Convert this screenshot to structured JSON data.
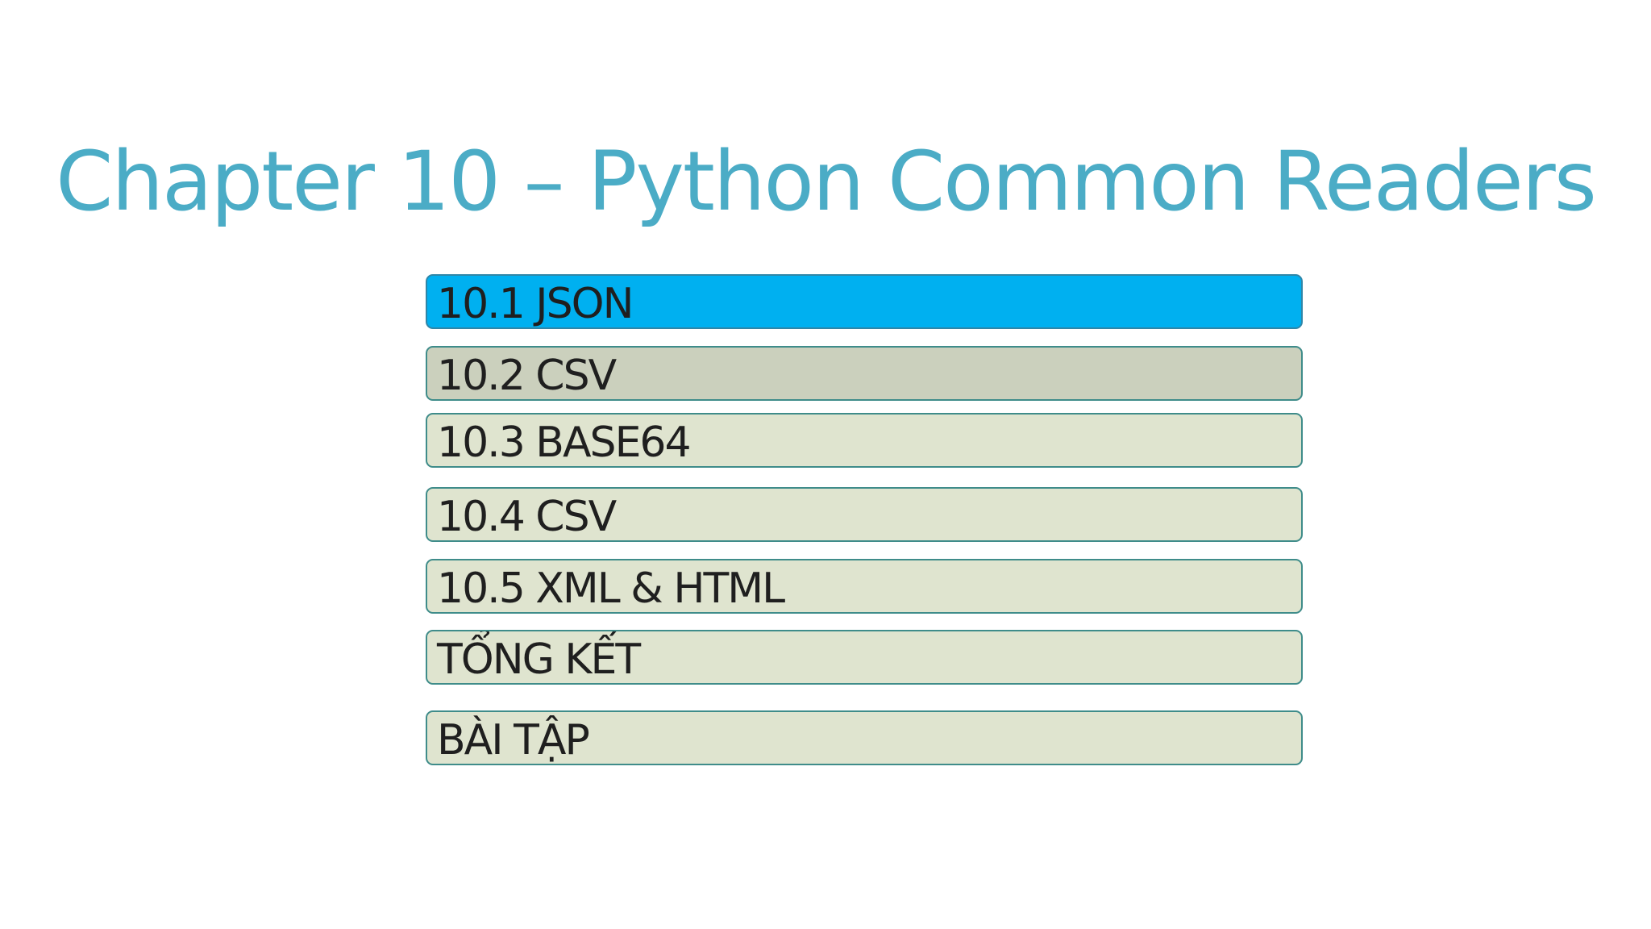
{
  "slide": {
    "title": "Chapter 10 – Python Common Readers"
  },
  "menu": {
    "items": [
      {
        "label": "10.1 JSON",
        "state": "selected"
      },
      {
        "label": "10.2 CSV",
        "state": "hover"
      },
      {
        "label": "10.3 BASE64",
        "state": "normal"
      },
      {
        "label": "10.4 CSV",
        "state": "normal"
      },
      {
        "label": "10.5 XML & HTML",
        "state": "normal"
      },
      {
        "label": "TỔNG KẾT",
        "state": "normal"
      },
      {
        "label": "BÀI TẬP",
        "state": "normal"
      }
    ]
  },
  "colors": {
    "title": "#4bacc6",
    "selected_fill": "#00b0f0",
    "hover_fill": "#cbd0bd",
    "normal_fill": "#dfe4cf",
    "border": "#3f8c8a",
    "text": "#1f1f1f"
  }
}
